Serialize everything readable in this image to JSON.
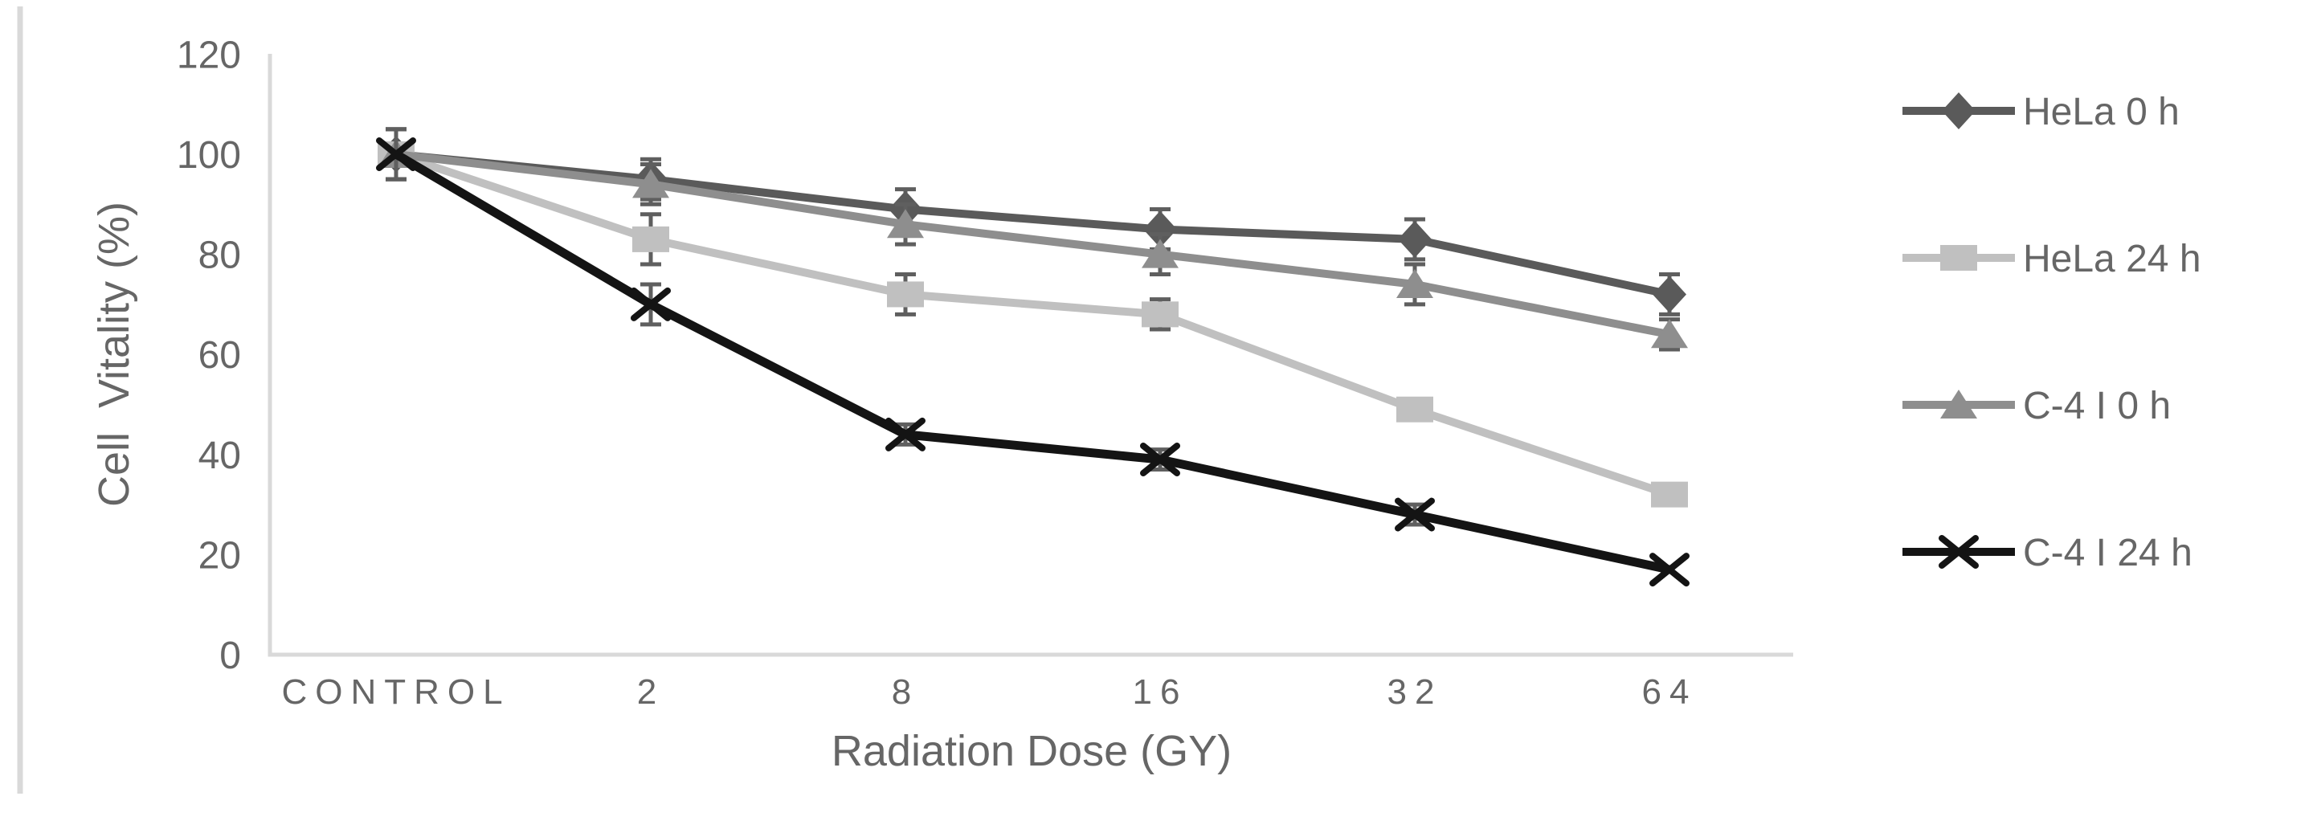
{
  "chart_data": {
    "type": "line",
    "title": "",
    "xlabel": "Radiation Dose (GY)",
    "ylabel": "Cell  Vitality (%)",
    "categories": [
      "CONTROL",
      "2",
      "8",
      "16",
      "32",
      "64"
    ],
    "ylim": [
      0,
      120
    ],
    "yticks": [
      0,
      20,
      40,
      60,
      80,
      100,
      120
    ],
    "grid": false,
    "legend_position": "right",
    "series": [
      {
        "name": "HeLa 0 h",
        "marker": "diamond",
        "color": "#5a5a5a",
        "values": [
          100,
          95,
          89,
          85,
          83,
          72
        ],
        "errors": [
          5,
          4,
          4,
          4,
          4,
          4
        ]
      },
      {
        "name": "HeLa 24 h",
        "marker": "square",
        "color": "#c0c0c0",
        "values": [
          100,
          83,
          72,
          68,
          49,
          32
        ],
        "errors": [
          5,
          5,
          4,
          3,
          0,
          0
        ]
      },
      {
        "name": "C-4 I 0 h",
        "marker": "triangle",
        "color": "#8e8e8e",
        "values": [
          100,
          94,
          86,
          80,
          74,
          64
        ],
        "errors": [
          5,
          4,
          4,
          4,
          4,
          3
        ]
      },
      {
        "name": "C-4 I 24 h",
        "marker": "x",
        "color": "#141414",
        "values": [
          100,
          70,
          44,
          39,
          28,
          17
        ],
        "errors": [
          5,
          4,
          2,
          2,
          2,
          0
        ]
      }
    ],
    "axis_color": "#d9d9d9",
    "text_color": "#666666",
    "error_color": "#5f5f5f"
  }
}
